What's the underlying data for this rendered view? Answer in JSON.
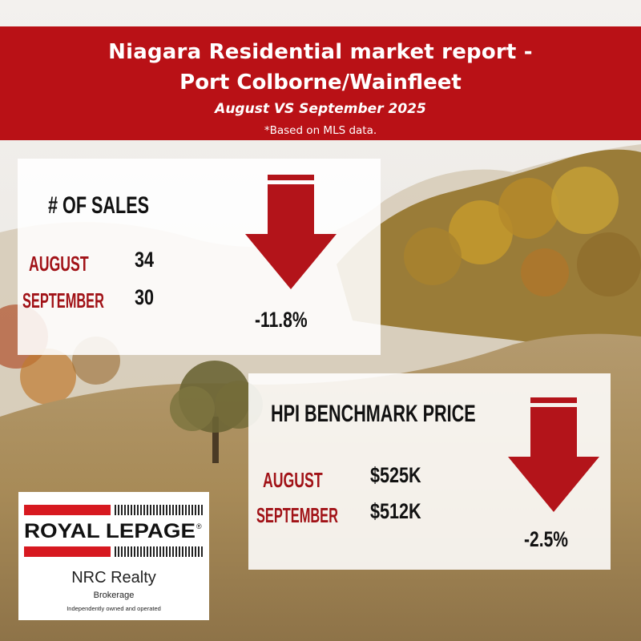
{
  "banner": {
    "title_line1": "Niagara Residential market report -",
    "title_line2": "Port Colborne/Wainfleet",
    "subtitle": "August VS September 2025",
    "note": "*Based on MLS data."
  },
  "sales": {
    "heading": "# OF SALES",
    "rows": [
      {
        "month": "AUGUST",
        "value": "34"
      },
      {
        "month": "SEPTEMBER",
        "value": "30"
      }
    ],
    "change": "-11.8%",
    "trend": "down",
    "arrow_icon": "down-arrow-icon"
  },
  "hpi": {
    "heading": "HPI BENCHMARK PRICE",
    "rows": [
      {
        "month": "AUGUST",
        "value": "$525K"
      },
      {
        "month": "SEPTEMBER",
        "value": "$512K"
      }
    ],
    "change": "-2.5%",
    "trend": "down",
    "arrow_icon": "down-arrow-icon"
  },
  "logo": {
    "brand": "ROYAL LEPAGE",
    "office": "NRC Realty",
    "type": "Brokerage",
    "tagline": "Independently owned and operated"
  },
  "colors": {
    "banner_red": "#b91116",
    "arrow_red": "#b3141a",
    "month_red": "#a11217"
  }
}
